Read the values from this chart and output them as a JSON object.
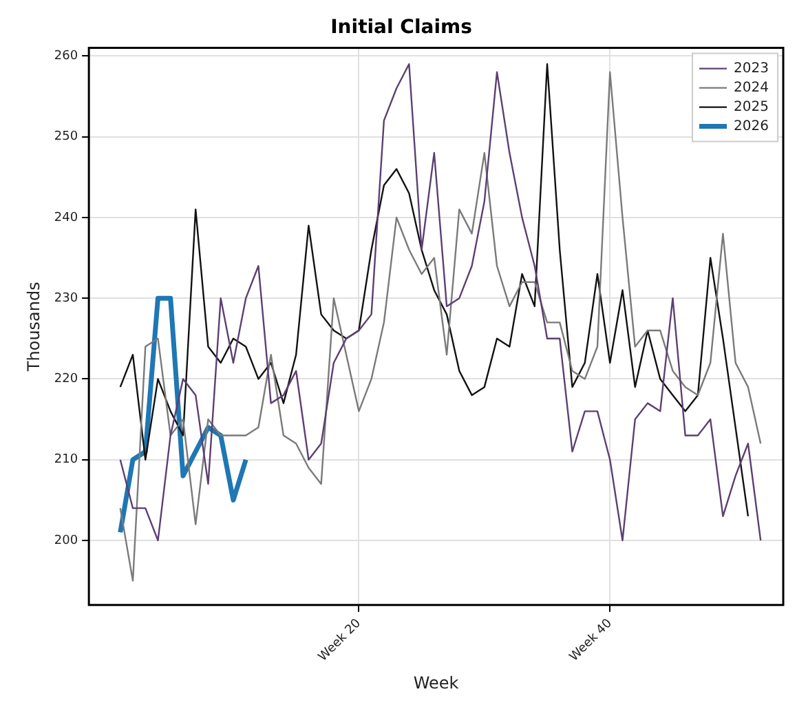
{
  "chart_data": {
    "type": "line",
    "title": "Initial Claims",
    "xlabel": "Week",
    "ylabel": "Thousands",
    "categories": [
      null,
      null,
      null,
      null,
      null,
      null,
      null,
      null,
      null,
      null,
      null,
      null,
      null,
      null,
      null,
      null,
      null,
      null,
      null,
      "Week 20",
      null,
      null,
      null,
      null,
      null,
      null,
      null,
      null,
      null,
      null,
      null,
      null,
      null,
      null,
      null,
      null,
      null,
      null,
      null,
      "Week 40",
      null,
      null,
      null,
      null,
      null,
      null,
      null,
      null,
      null,
      null,
      null,
      null
    ],
    "ylim": [
      192,
      261
    ],
    "yticks": [
      200,
      210,
      220,
      230,
      240,
      250,
      260
    ],
    "grid": true,
    "legend": "top right",
    "marker": "none",
    "line_style": "solid",
    "series": [
      {
        "name": "2023",
        "color": "#5c3f72",
        "values": [
          210,
          204,
          204,
          200,
          213,
          220,
          218,
          207,
          230,
          222,
          230,
          234,
          217,
          218,
          221,
          210,
          212,
          222,
          225,
          226,
          228,
          252,
          256,
          259,
          236,
          248,
          229,
          230,
          234,
          242,
          258,
          248,
          240,
          234,
          225,
          225,
          211,
          216,
          216,
          210,
          200,
          215,
          217,
          216,
          230,
          213,
          213,
          215,
          203,
          208,
          212,
          200
        ]
      },
      {
        "name": "2024",
        "color": "#7a7a7a",
        "values": [
          204,
          195,
          224,
          225,
          213,
          215,
          202,
          215,
          213,
          213,
          213,
          214,
          223,
          213,
          212,
          209,
          207,
          230,
          223,
          216,
          220,
          227,
          240,
          236,
          233,
          235,
          223,
          241,
          238,
          248,
          234,
          229,
          232,
          232,
          227,
          227,
          221,
          220,
          224,
          258,
          240,
          224,
          226,
          226,
          221,
          219,
          218,
          222,
          238,
          222,
          219,
          212
        ]
      },
      {
        "name": "2025",
        "color": "#111111",
        "values": [
          219,
          223,
          210,
          220,
          216,
          213,
          241,
          224,
          222,
          225,
          224,
          220,
          222,
          217,
          223,
          239,
          228,
          226,
          225,
          226,
          236,
          244,
          246,
          243,
          236,
          231,
          228,
          221,
          218,
          219,
          225,
          224,
          233,
          229,
          259,
          236,
          219,
          222,
          233,
          222,
          231,
          219,
          226,
          220,
          218,
          216,
          218,
          235,
          225,
          214,
          203,
          null
        ]
      },
      {
        "name": "2026",
        "color": "#1f77b4",
        "values": [
          201,
          210,
          211,
          230,
          230,
          208,
          211,
          214,
          213,
          205,
          210,
          null,
          null,
          null,
          null,
          null,
          null,
          null,
          null,
          null,
          null,
          null,
          null,
          null,
          null,
          null,
          null,
          null,
          null,
          null,
          null,
          null,
          null,
          null,
          null,
          null,
          null,
          null,
          null,
          null,
          null,
          null,
          null,
          null,
          null,
          null,
          null,
          null,
          null,
          null,
          null,
          null
        ]
      }
    ]
  }
}
